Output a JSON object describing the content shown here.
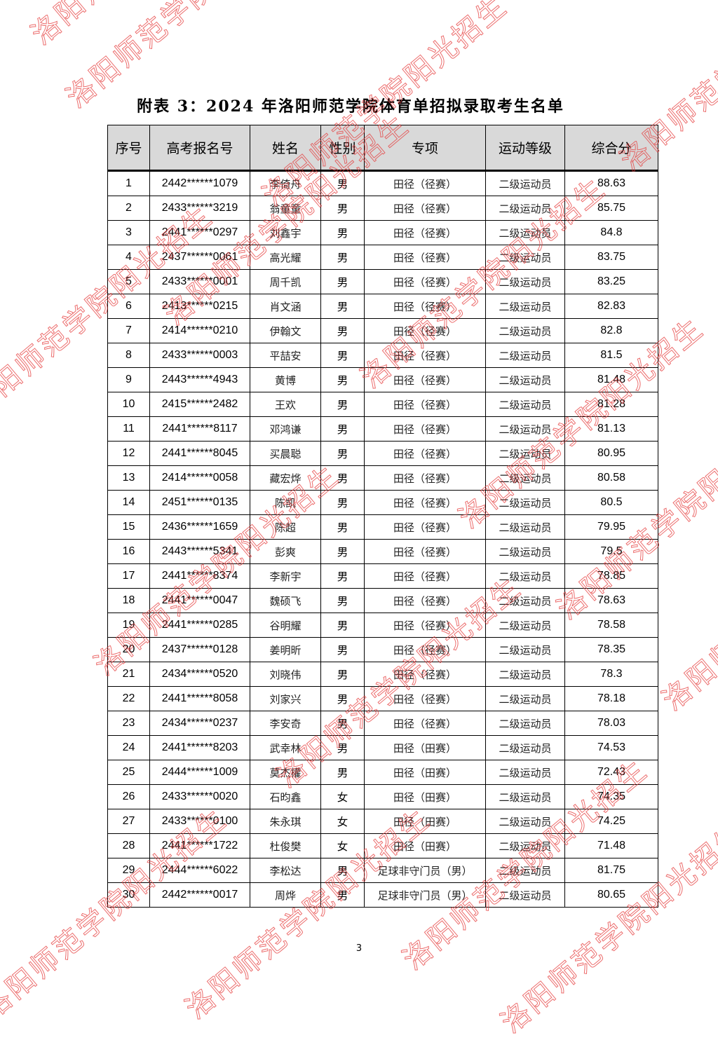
{
  "title": "附表 3：2024 年洛阳师范学院体育单招拟录取考生名单",
  "watermark": "洛阳师范学院阳光招生",
  "watermark_color": "#e63c3c",
  "header_bg": "#d9d9d9",
  "columns": [
    "序号",
    "高考报名号",
    "姓名",
    "性别",
    "专项",
    "运动等级",
    "综合分"
  ],
  "rows": [
    [
      "1",
      "2442******1079",
      "李倚舟",
      "男",
      "田径（径赛）",
      "二级运动员",
      "88.63"
    ],
    [
      "2",
      "2433******3219",
      "翁童童",
      "男",
      "田径（径赛）",
      "二级运动员",
      "85.75"
    ],
    [
      "3",
      "2441******0297",
      "刘鑫宇",
      "男",
      "田径（径赛）",
      "二级运动员",
      "84.8"
    ],
    [
      "4",
      "2437******0061",
      "高光耀",
      "男",
      "田径（径赛）",
      "二级运动员",
      "83.75"
    ],
    [
      "5",
      "2433******0001",
      "周千凯",
      "男",
      "田径（径赛）",
      "二级运动员",
      "83.25"
    ],
    [
      "6",
      "2413******0215",
      "肖文涵",
      "男",
      "田径（径赛）",
      "二级运动员",
      "82.83"
    ],
    [
      "7",
      "2414******0210",
      "伊翰文",
      "男",
      "田径（径赛）",
      "二级运动员",
      "82.8"
    ],
    [
      "8",
      "2433******0003",
      "平喆安",
      "男",
      "田径（径赛）",
      "二级运动员",
      "81.5"
    ],
    [
      "9",
      "2443******4943",
      "黄博",
      "男",
      "田径（径赛）",
      "二级运动员",
      "81.48"
    ],
    [
      "10",
      "2415******2482",
      "王欢",
      "男",
      "田径（径赛）",
      "二级运动员",
      "81.28"
    ],
    [
      "11",
      "2441******8117",
      "邓鸿谦",
      "男",
      "田径（径赛）",
      "二级运动员",
      "81.13"
    ],
    [
      "12",
      "2441******8045",
      "买晨聪",
      "男",
      "田径（径赛）",
      "二级运动员",
      "80.95"
    ],
    [
      "13",
      "2414******0058",
      "藏宏烨",
      "男",
      "田径（径赛）",
      "二级运动员",
      "80.58"
    ],
    [
      "14",
      "2451******0135",
      "陈凯",
      "男",
      "田径（径赛）",
      "二级运动员",
      "80.5"
    ],
    [
      "15",
      "2436******1659",
      "陈超",
      "男",
      "田径（径赛）",
      "二级运动员",
      "79.95"
    ],
    [
      "16",
      "2443******5341",
      "彭爽",
      "男",
      "田径（径赛）",
      "二级运动员",
      "79.5"
    ],
    [
      "17",
      "2441******8374",
      "李新宇",
      "男",
      "田径（径赛）",
      "二级运动员",
      "78.85"
    ],
    [
      "18",
      "2441******0047",
      "魏硕飞",
      "男",
      "田径（径赛）",
      "二级运动员",
      "78.63"
    ],
    [
      "19",
      "2441******0285",
      "谷明耀",
      "男",
      "田径（径赛）",
      "二级运动员",
      "78.58"
    ],
    [
      "20",
      "2437******0128",
      "姜明昕",
      "男",
      "田径（径赛）",
      "二级运动员",
      "78.35"
    ],
    [
      "21",
      "2434******0520",
      "刘晓伟",
      "男",
      "田径（径赛）",
      "二级运动员",
      "78.3"
    ],
    [
      "22",
      "2441******8058",
      "刘家兴",
      "男",
      "田径（径赛）",
      "二级运动员",
      "78.18"
    ],
    [
      "23",
      "2434******0237",
      "李安奇",
      "男",
      "田径（径赛）",
      "二级运动员",
      "78.03"
    ],
    [
      "24",
      "2441******8203",
      "武幸林",
      "男",
      "田径（田赛）",
      "二级运动员",
      "74.53"
    ],
    [
      "25",
      "2444******1009",
      "莫杰權",
      "男",
      "田径（田赛）",
      "二级运动员",
      "72.43"
    ],
    [
      "26",
      "2433******0020",
      "石昀鑫",
      "女",
      "田径（田赛）",
      "二级运动员",
      "74.35"
    ],
    [
      "27",
      "2433******0100",
      "朱永琪",
      "女",
      "田径（田赛）",
      "二级运动员",
      "74.25"
    ],
    [
      "28",
      "2441******1722",
      "杜俊樊",
      "女",
      "田径（田赛）",
      "二级运动员",
      "71.48"
    ],
    [
      "29",
      "2444******6022",
      "李松达",
      "男",
      "足球非守门员（男）",
      "二级运动员",
      "81.75"
    ],
    [
      "30",
      "2442******0017",
      "周烨",
      "男",
      "足球非守门员（男）",
      "二级运动员",
      "80.65"
    ]
  ],
  "page_number": "3"
}
